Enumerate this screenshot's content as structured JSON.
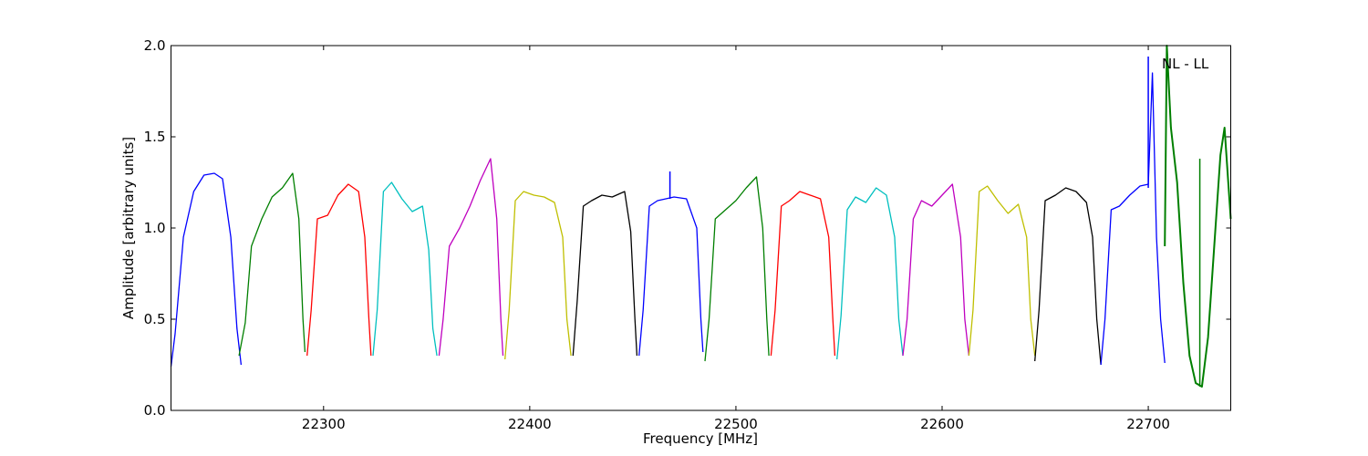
{
  "chart_data": {
    "type": "line",
    "title": "",
    "xlabel": "Frequency [MHz]",
    "ylabel": "Amplitude [arbitrary units]",
    "xlim": [
      22226,
      22740
    ],
    "ylim": [
      0.0,
      2.0
    ],
    "xticks": [
      22300,
      22400,
      22500,
      22600,
      22700
    ],
    "yticks": [
      0.0,
      0.5,
      1.0,
      1.5,
      2.0
    ],
    "xtick_labels": [
      "22300",
      "22400",
      "22500",
      "22600",
      "22700"
    ],
    "ytick_labels": [
      "0.0",
      "0.5",
      "1.0",
      "1.5",
      "2.0"
    ],
    "grid": false,
    "annotation": {
      "text": "NL - LL",
      "position": "top-right"
    },
    "colors": [
      "#0000ff",
      "#007f00",
      "#ff0000",
      "#00bfbf",
      "#bf00bf",
      "#bfbf00",
      "#000000"
    ],
    "series": [
      {
        "x": [
          22226,
          22228,
          22232,
          22237,
          22242,
          22247,
          22251,
          22255,
          22258,
          22260
        ],
        "values": [
          0.24,
          0.42,
          0.95,
          1.2,
          1.29,
          1.3,
          1.27,
          0.95,
          0.45,
          0.25
        ]
      },
      {
        "x": [
          22259,
          22262,
          22265,
          22270,
          22275,
          22280,
          22285,
          22288,
          22290,
          22291
        ],
        "values": [
          0.3,
          0.48,
          0.9,
          1.05,
          1.17,
          1.22,
          1.3,
          1.05,
          0.5,
          0.32
        ]
      },
      {
        "x": [
          22292,
          22294,
          22297,
          22302,
          22307,
          22312,
          22317,
          22320,
          22322,
          22323
        ],
        "values": [
          0.3,
          0.55,
          1.05,
          1.07,
          1.18,
          1.24,
          1.2,
          0.95,
          0.5,
          0.3
        ]
      },
      {
        "x": [
          22324,
          22326,
          22329,
          22333,
          22338,
          22343,
          22348,
          22351,
          22353,
          22355
        ],
        "values": [
          0.3,
          0.55,
          1.2,
          1.25,
          1.16,
          1.09,
          1.12,
          0.88,
          0.45,
          0.3
        ]
      },
      {
        "x": [
          22356,
          22358,
          22361,
          22366,
          22371,
          22376,
          22381,
          22384,
          22386,
          22387
        ],
        "values": [
          0.3,
          0.5,
          0.9,
          1.0,
          1.12,
          1.26,
          1.38,
          1.05,
          0.5,
          0.3
        ]
      },
      {
        "x": [
          22388,
          22390,
          22393,
          22397,
          22402,
          22407,
          22412,
          22416,
          22418,
          22420
        ],
        "values": [
          0.28,
          0.55,
          1.15,
          1.2,
          1.18,
          1.17,
          1.14,
          0.95,
          0.5,
          0.3
        ]
      },
      {
        "x": [
          22421,
          22423,
          22426,
          22430,
          22435,
          22440,
          22446,
          22449,
          22451,
          22452
        ],
        "values": [
          0.3,
          0.6,
          1.12,
          1.15,
          1.18,
          1.17,
          1.2,
          0.98,
          0.5,
          0.3
        ]
      },
      {
        "x": [
          22453,
          22455,
          22458,
          22462,
          22466,
          22470,
          22476,
          22481,
          22483,
          22484
        ],
        "values": [
          0.3,
          0.55,
          1.12,
          1.15,
          1.16,
          1.17,
          1.16,
          1.0,
          0.5,
          0.32
        ]
      },
      {
        "x": [
          22485,
          22487,
          22490,
          22495,
          22500,
          22505,
          22510,
          22513,
          22515,
          22516
        ],
        "values": [
          0.27,
          0.5,
          1.05,
          1.1,
          1.15,
          1.22,
          1.28,
          1.0,
          0.5,
          0.3
        ]
      },
      {
        "x": [
          22517,
          22519,
          22522,
          22526,
          22531,
          22536,
          22541,
          22545,
          22547,
          22548
        ],
        "values": [
          0.3,
          0.55,
          1.12,
          1.15,
          1.2,
          1.18,
          1.16,
          0.95,
          0.5,
          0.3
        ]
      },
      {
        "x": [
          22549,
          22551,
          22554,
          22558,
          22563,
          22568,
          22573,
          22577,
          22579,
          22581
        ],
        "values": [
          0.28,
          0.52,
          1.1,
          1.17,
          1.14,
          1.22,
          1.18,
          0.95,
          0.5,
          0.3
        ]
      },
      {
        "x": [
          22581,
          22583,
          22586,
          22590,
          22595,
          22600,
          22605,
          22609,
          22611,
          22613
        ],
        "values": [
          0.3,
          0.5,
          1.05,
          1.15,
          1.12,
          1.18,
          1.24,
          0.95,
          0.5,
          0.3
        ]
      },
      {
        "x": [
          22613,
          22615,
          22618,
          22622,
          22627,
          22632,
          22637,
          22641,
          22643,
          22645
        ],
        "values": [
          0.3,
          0.55,
          1.2,
          1.23,
          1.15,
          1.08,
          1.13,
          0.95,
          0.5,
          0.3
        ]
      },
      {
        "x": [
          22645,
          22647,
          22650,
          22655,
          22660,
          22665,
          22670,
          22673,
          22675,
          22677
        ],
        "values": [
          0.27,
          0.55,
          1.15,
          1.18,
          1.22,
          1.2,
          1.14,
          0.95,
          0.5,
          0.25
        ]
      },
      {
        "x": [
          22677,
          22679,
          22682,
          22686,
          22691,
          22696,
          22700,
          22702,
          22704,
          22706,
          22708
        ],
        "values": [
          0.25,
          0.5,
          1.1,
          1.12,
          1.18,
          1.23,
          1.24,
          1.85,
          0.95,
          0.5,
          0.26
        ]
      },
      {
        "x": [
          22708,
          22709,
          22711,
          22714,
          22717,
          22720,
          22723,
          22726,
          22729,
          22732,
          22735,
          22737,
          22740
        ],
        "values": [
          0.9,
          2.0,
          1.55,
          1.25,
          0.7,
          0.3,
          0.15,
          0.13,
          0.4,
          0.9,
          1.4,
          1.55,
          1.05
        ]
      }
    ],
    "spikes": [
      {
        "x": 22468,
        "values": [
          1.16,
          1.31
        ],
        "color": "#0000ff"
      },
      {
        "x": 22700,
        "values": [
          1.22,
          1.94
        ],
        "color": "#0000ff"
      },
      {
        "x": 22725,
        "values": [
          0.13,
          1.38
        ],
        "color": "#007f00"
      }
    ]
  }
}
